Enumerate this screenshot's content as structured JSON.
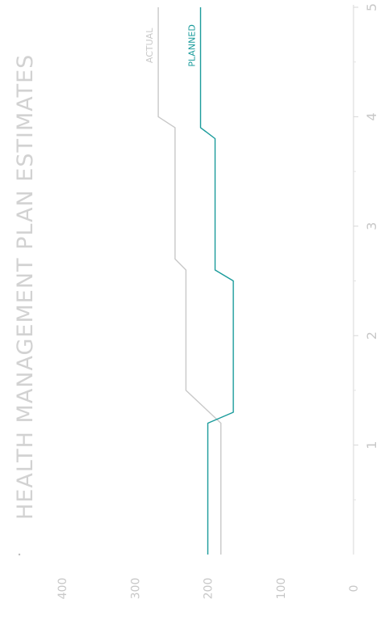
{
  "chart_data": {
    "type": "line",
    "title": "HEALTH MANAGEMENT PLAN ESTIMATES",
    "xlabel": "",
    "ylabel": "",
    "orientation": "rotated-90-clockwise",
    "x_ticks": [
      1,
      2,
      3,
      4,
      5
    ],
    "y_ticks": [
      0,
      100,
      200,
      300,
      400
    ],
    "xlim": [
      0,
      5
    ],
    "ylim": [
      0,
      400
    ],
    "grid": false,
    "series": [
      {
        "name": "ACTUAL",
        "color": "#c8c8c8",
        "points": [
          [
            0.0,
            182
          ],
          [
            1.2,
            182
          ],
          [
            1.5,
            230
          ],
          [
            2.6,
            230
          ],
          [
            2.7,
            245
          ],
          [
            3.9,
            245
          ],
          [
            4.0,
            268
          ],
          [
            5.0,
            268
          ]
        ]
      },
      {
        "name": "PLANNED",
        "color": "#1a9b9b",
        "points": [
          [
            0.0,
            200
          ],
          [
            1.2,
            200
          ],
          [
            1.3,
            165
          ],
          [
            2.5,
            165
          ],
          [
            2.6,
            190
          ],
          [
            3.8,
            190
          ],
          [
            3.9,
            210
          ],
          [
            5.0,
            210
          ]
        ]
      }
    ],
    "legend_placement": "labels-at-line-ends"
  }
}
